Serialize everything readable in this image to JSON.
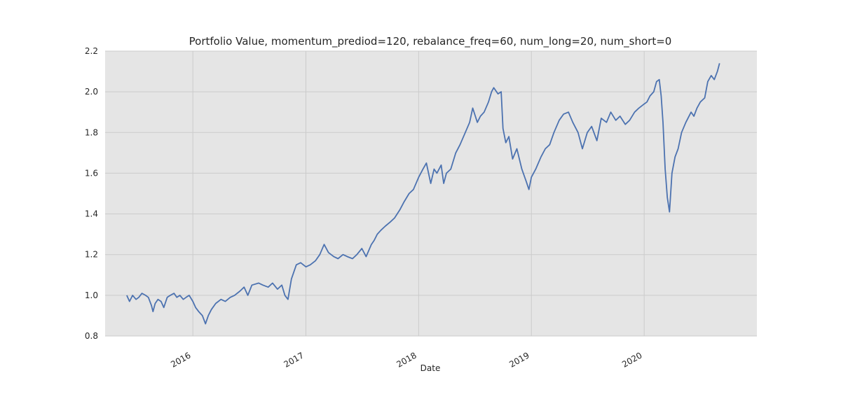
{
  "chart_data": {
    "type": "line",
    "title": "Portfolio Value, momentum_prediod=120, rebalance_freq=60, num_long=20, num_short=0",
    "xlabel": "Date",
    "ylabel": "",
    "x_tick_labels": [
      "2016",
      "2017",
      "2018",
      "2019",
      "2020"
    ],
    "y_tick_labels": [
      "0.8",
      "1.0",
      "1.2",
      "1.4",
      "1.6",
      "1.8",
      "2.0",
      "2.2"
    ],
    "xlim": [
      "2015-03-23",
      "2020-12-31"
    ],
    "ylim": [
      0.8,
      2.2
    ],
    "grid": true,
    "legend": "none",
    "colors": {
      "background": "#e5e5e5",
      "grid": "#cbcbcb",
      "line": "#4c72b0"
    },
    "series": [
      {
        "x": [
          "2015-06-01",
          "2015-06-10",
          "2015-06-20",
          "2015-07-01",
          "2015-07-10",
          "2015-07-20",
          "2015-08-01",
          "2015-08-10",
          "2015-08-20",
          "2015-08-25",
          "2015-09-01",
          "2015-09-10",
          "2015-09-20",
          "2015-09-29",
          "2015-10-10",
          "2015-10-20",
          "2015-11-01",
          "2015-11-10",
          "2015-11-20",
          "2015-12-01",
          "2015-12-10",
          "2015-12-20",
          "2016-01-01",
          "2016-01-10",
          "2016-01-20",
          "2016-02-01",
          "2016-02-11",
          "2016-02-20",
          "2016-03-01",
          "2016-03-15",
          "2016-04-01",
          "2016-04-15",
          "2016-05-01",
          "2016-05-15",
          "2016-06-01",
          "2016-06-15",
          "2016-06-27",
          "2016-07-10",
          "2016-08-01",
          "2016-08-15",
          "2016-09-01",
          "2016-09-15",
          "2016-10-01",
          "2016-10-15",
          "2016-10-25",
          "2016-11-04",
          "2016-11-15",
          "2016-12-01",
          "2016-12-15",
          "2017-01-01",
          "2017-01-15",
          "2017-02-01",
          "2017-02-15",
          "2017-03-01",
          "2017-03-15",
          "2017-04-01",
          "2017-04-15",
          "2017-05-01",
          "2017-05-15",
          "2017-06-01",
          "2017-06-15",
          "2017-07-01",
          "2017-07-15",
          "2017-08-01",
          "2017-08-10",
          "2017-08-20",
          "2017-09-01",
          "2017-09-15",
          "2017-10-01",
          "2017-10-15",
          "2017-11-01",
          "2017-11-15",
          "2017-12-01",
          "2017-12-15",
          "2018-01-01",
          "2018-01-15",
          "2018-01-26",
          "2018-02-09",
          "2018-02-20",
          "2018-03-01",
          "2018-03-15",
          "2018-03-23",
          "2018-04-01",
          "2018-04-15",
          "2018-05-01",
          "2018-05-15",
          "2018-06-01",
          "2018-06-15",
          "2018-06-25",
          "2018-07-10",
          "2018-07-20",
          "2018-08-01",
          "2018-08-15",
          "2018-08-25",
          "2018-09-01",
          "2018-09-15",
          "2018-09-25",
          "2018-10-01",
          "2018-10-10",
          "2018-10-20",
          "2018-11-01",
          "2018-11-15",
          "2018-12-01",
          "2018-12-15",
          "2018-12-24",
          "2019-01-01",
          "2019-01-15",
          "2019-02-01",
          "2019-02-15",
          "2019-03-01",
          "2019-03-15",
          "2019-04-01",
          "2019-04-15",
          "2019-05-01",
          "2019-05-15",
          "2019-06-01",
          "2019-06-15",
          "2019-07-01",
          "2019-07-15",
          "2019-08-01",
          "2019-08-15",
          "2019-09-01",
          "2019-09-15",
          "2019-10-01",
          "2019-10-15",
          "2019-11-01",
          "2019-11-15",
          "2019-12-01",
          "2019-12-15",
          "2020-01-01",
          "2020-01-10",
          "2020-01-20",
          "2020-02-01",
          "2020-02-10",
          "2020-02-19",
          "2020-02-25",
          "2020-03-02",
          "2020-03-09",
          "2020-03-16",
          "2020-03-23",
          "2020-03-31",
          "2020-04-10",
          "2020-04-20",
          "2020-05-01",
          "2020-05-15",
          "2020-06-01",
          "2020-06-10",
          "2020-06-20",
          "2020-07-01",
          "2020-07-15",
          "2020-07-25",
          "2020-08-05",
          "2020-08-15",
          "2020-08-25",
          "2020-09-01"
        ],
        "values": [
          1.0,
          0.97,
          1.0,
          0.98,
          0.99,
          1.01,
          1.0,
          0.99,
          0.95,
          0.92,
          0.96,
          0.98,
          0.97,
          0.94,
          0.99,
          1.0,
          1.01,
          0.99,
          1.0,
          0.98,
          0.99,
          1.0,
          0.97,
          0.94,
          0.92,
          0.9,
          0.86,
          0.9,
          0.93,
          0.96,
          0.98,
          0.97,
          0.99,
          1.0,
          1.02,
          1.04,
          1.0,
          1.05,
          1.06,
          1.05,
          1.04,
          1.06,
          1.03,
          1.05,
          1.0,
          0.98,
          1.08,
          1.15,
          1.16,
          1.14,
          1.15,
          1.17,
          1.2,
          1.25,
          1.21,
          1.19,
          1.18,
          1.2,
          1.19,
          1.18,
          1.2,
          1.23,
          1.19,
          1.25,
          1.27,
          1.3,
          1.32,
          1.34,
          1.36,
          1.38,
          1.42,
          1.46,
          1.5,
          1.52,
          1.58,
          1.62,
          1.65,
          1.55,
          1.62,
          1.6,
          1.64,
          1.55,
          1.6,
          1.62,
          1.7,
          1.74,
          1.8,
          1.85,
          1.92,
          1.85,
          1.88,
          1.9,
          1.95,
          2.0,
          2.02,
          1.99,
          2.0,
          1.82,
          1.75,
          1.78,
          1.67,
          1.72,
          1.62,
          1.56,
          1.52,
          1.58,
          1.62,
          1.68,
          1.72,
          1.74,
          1.8,
          1.86,
          1.89,
          1.9,
          1.85,
          1.8,
          1.72,
          1.8,
          1.83,
          1.76,
          1.87,
          1.85,
          1.9,
          1.86,
          1.88,
          1.84,
          1.86,
          1.9,
          1.92,
          1.94,
          1.95,
          1.98,
          2.0,
          2.05,
          2.06,
          1.98,
          1.85,
          1.62,
          1.48,
          1.41,
          1.6,
          1.68,
          1.72,
          1.8,
          1.85,
          1.9,
          1.88,
          1.92,
          1.95,
          1.97,
          2.05,
          2.08,
          2.06,
          2.1,
          2.14
        ]
      }
    ]
  }
}
